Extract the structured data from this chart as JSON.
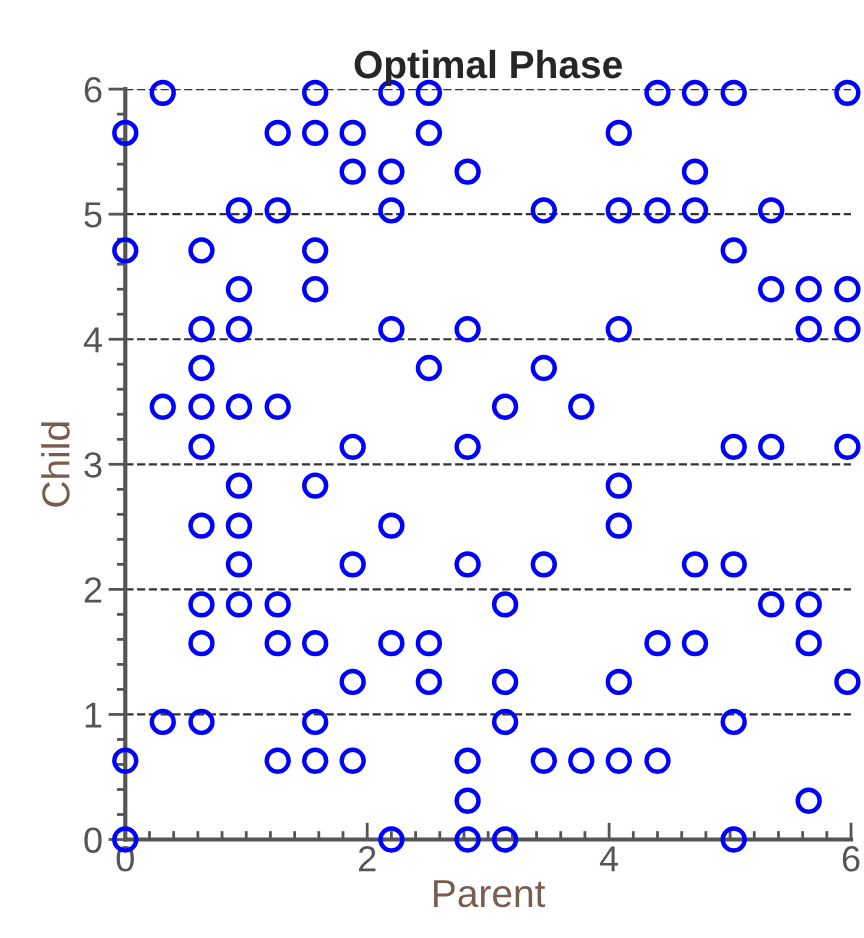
{
  "chart_data": {
    "type": "scatter",
    "title": "Optimal Phase",
    "xlabel": "Parent",
    "ylabel": "Child",
    "xlim": [
      0,
      6
    ],
    "ylim": [
      0,
      6
    ],
    "xticks": [
      0,
      2,
      4,
      6
    ],
    "yticks": [
      0,
      1,
      2,
      3,
      4,
      5,
      6
    ],
    "grid": "y",
    "marker": "circle",
    "legend": false,
    "series": [
      {
        "color": "#0000ff",
        "x": [
          0.31,
          1.57,
          2.2,
          2.51,
          4.4,
          4.71,
          5.03,
          5.97,
          0,
          1.26,
          1.57,
          1.88,
          2.51,
          4.08,
          1.88,
          2.2,
          2.83,
          4.71,
          0.94,
          1.26,
          2.2,
          3.46,
          4.08,
          4.4,
          4.71,
          5.34,
          0,
          0.63,
          1.57,
          5.03,
          0.94,
          1.57,
          5.34,
          5.65,
          5.97,
          0.63,
          0.94,
          2.2,
          2.83,
          4.08,
          5.65,
          5.97,
          0.63,
          2.51,
          3.46,
          0.31,
          0.63,
          0.94,
          1.26,
          3.14,
          3.77,
          0.63,
          1.88,
          2.83,
          5.03,
          5.34,
          5.97,
          0.94,
          1.57,
          4.08,
          0.63,
          0.94,
          2.2,
          4.08,
          0.94,
          1.88,
          2.83,
          3.46,
          4.71,
          5.03,
          0.63,
          0.94,
          1.26,
          3.14,
          5.34,
          5.65,
          0.63,
          1.26,
          1.57,
          2.2,
          2.51,
          4.4,
          4.71,
          5.65,
          1.88,
          2.51,
          3.14,
          4.08,
          5.97,
          0.31,
          0.63,
          1.57,
          3.14,
          5.03,
          0,
          1.26,
          1.57,
          1.88,
          2.83,
          3.46,
          3.77,
          4.08,
          4.4,
          2.83,
          5.65,
          0,
          2.2,
          2.83,
          3.14,
          5.03
        ],
        "values": [
          5.97,
          5.97,
          5.97,
          5.97,
          5.97,
          5.97,
          5.97,
          5.97,
          5.65,
          5.65,
          5.65,
          5.65,
          5.65,
          5.65,
          5.34,
          5.34,
          5.34,
          5.34,
          5.03,
          5.03,
          5.03,
          5.03,
          5.03,
          5.03,
          5.03,
          5.03,
          4.71,
          4.71,
          4.71,
          4.71,
          4.4,
          4.4,
          4.4,
          4.4,
          4.4,
          4.08,
          4.08,
          4.08,
          4.08,
          4.08,
          4.08,
          4.08,
          3.77,
          3.77,
          3.77,
          3.46,
          3.46,
          3.46,
          3.46,
          3.46,
          3.46,
          3.14,
          3.14,
          3.14,
          3.14,
          3.14,
          3.14,
          2.83,
          2.83,
          2.83,
          2.51,
          2.51,
          2.51,
          2.51,
          2.2,
          2.2,
          2.2,
          2.2,
          2.2,
          2.2,
          1.88,
          1.88,
          1.88,
          1.88,
          1.88,
          1.88,
          1.57,
          1.57,
          1.57,
          1.57,
          1.57,
          1.57,
          1.57,
          1.57,
          1.26,
          1.26,
          1.26,
          1.26,
          1.26,
          0.94,
          0.94,
          0.94,
          0.94,
          0.94,
          0.63,
          0.63,
          0.63,
          0.63,
          0.63,
          0.63,
          0.63,
          0.63,
          0.63,
          0.31,
          0.31,
          0,
          0,
          0,
          0,
          0
        ]
      }
    ]
  }
}
